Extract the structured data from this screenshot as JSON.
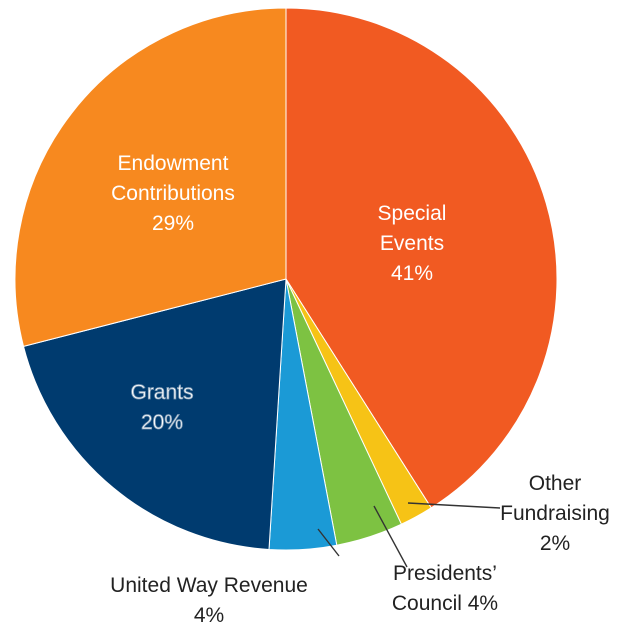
{
  "chart_data": {
    "type": "pie",
    "slices": [
      {
        "name": "Special Events",
        "value": 41,
        "label": [
          "Special",
          "Events",
          "41%"
        ],
        "color": "#f15a22"
      },
      {
        "name": "Other Fundraising",
        "value": 2,
        "label": [
          "Other",
          "Fundraising",
          "2%"
        ],
        "color": "#f6c316"
      },
      {
        "name": "Presidents' Council",
        "value": 4,
        "label": [
          "Presidents’",
          "Council 4%"
        ],
        "color": "#7dc242"
      },
      {
        "name": "United Way Revenue",
        "value": 4,
        "label": [
          "United Way Revenue",
          "4%"
        ],
        "color": "#1b9ad6"
      },
      {
        "name": "Grants",
        "value": 20,
        "label": [
          "Grants",
          "20%"
        ],
        "color": "#003b6f"
      },
      {
        "name": "Endowment Contributions",
        "value": 29,
        "label": [
          "Endowment",
          "Contributions",
          "29%"
        ],
        "color": "#f7891f"
      }
    ]
  }
}
